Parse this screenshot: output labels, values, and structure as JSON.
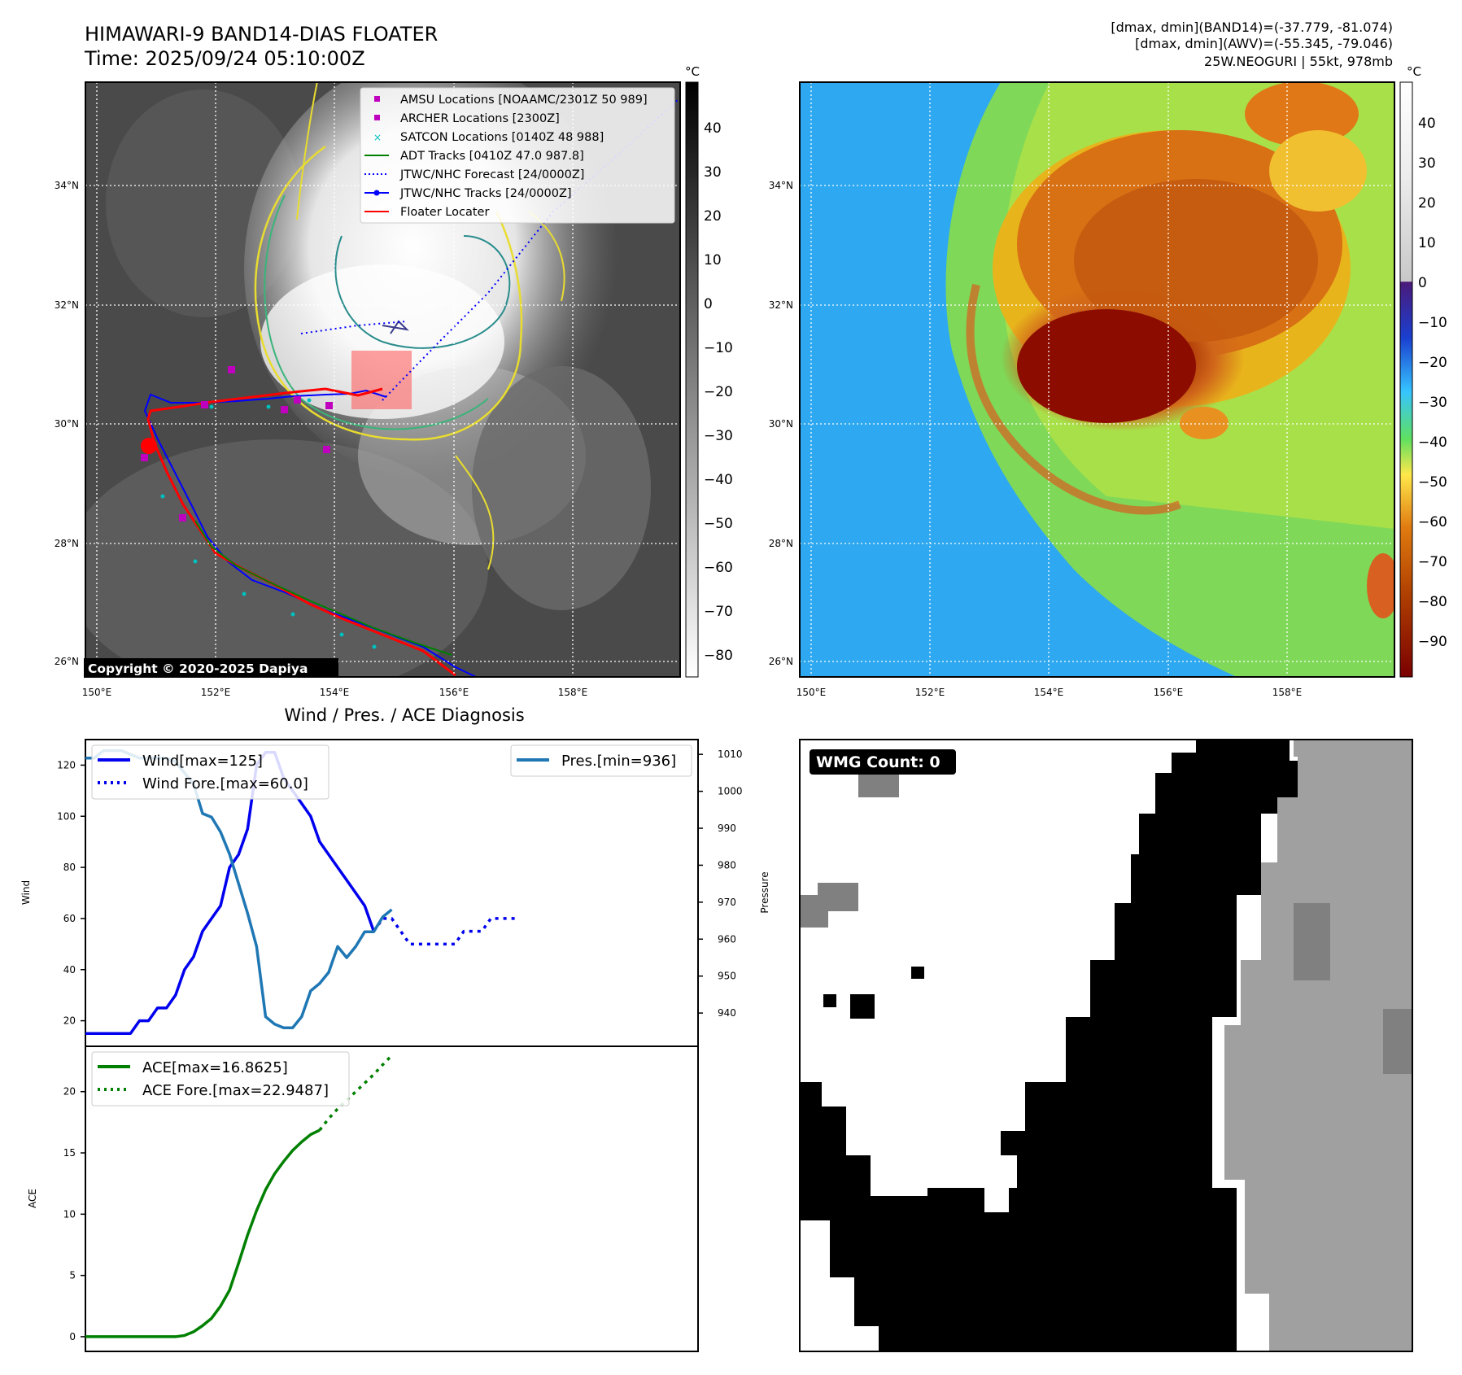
{
  "header": {
    "title_line1": "HIMAWARI-9 BAND14-DIAS FLOATER",
    "title_line2": "Time: 2025/09/24 05:10:00Z",
    "info_line1": "[dmax, dmin](BAND14)=(-37.779, -81.074)",
    "info_line2": "[dmax, dmin](AWV)=(-55.345, -79.046)",
    "info_line3": "25W.NEOGURI | 55kt, 978mb"
  },
  "map_left": {
    "lat_labels": [
      "34°N",
      "32°N",
      "30°N",
      "28°N",
      "26°N"
    ],
    "lon_labels": [
      "150°E",
      "152°E",
      "154°E",
      "156°E",
      "158°E"
    ],
    "colorbar_unit": "°C",
    "colorbar_ticks": [
      "40",
      "30",
      "20",
      "10",
      "0",
      "−10",
      "−20",
      "−30",
      "−40",
      "−50",
      "−60",
      "−70",
      "−80"
    ],
    "copyright": "Copyright © 2020-2025 Dapiya",
    "legend": [
      {
        "label": "AMSU Locations [NOAAMC/2301Z 50 989]",
        "color": "#bf00bf"
      },
      {
        "label": "ARCHER Locations [2300Z]",
        "color": "#bf00bf"
      },
      {
        "label": "SATCON Locations [0140Z 48 988]",
        "color": "#00bfbf"
      },
      {
        "label": "ADT Tracks [0410Z 47.0 987.8]",
        "color": "#008000"
      },
      {
        "label": "JTWC/NHC Forecast [24/0000Z]",
        "color": "#0000ff"
      },
      {
        "label": "JTWC/NHC Tracks [24/0000Z]",
        "color": "#0000ff"
      },
      {
        "label": "Floater Locater",
        "color": "#ff0000"
      }
    ]
  },
  "map_right": {
    "lat_labels": [
      "34°N",
      "32°N",
      "30°N",
      "28°N",
      "26°N"
    ],
    "lon_labels": [
      "150°E",
      "152°E",
      "154°E",
      "156°E",
      "158°E"
    ],
    "colorbar_unit": "°C",
    "colorbar_ticks": [
      "40",
      "30",
      "20",
      "10",
      "0",
      "−10",
      "−20",
      "−30",
      "−40",
      "−50",
      "−60",
      "−70",
      "−80",
      "−90"
    ]
  },
  "diag_title": "Wind / Pres. / ACE Diagnosis",
  "wmg_label": "WMG Count: 0",
  "chart_data": [
    {
      "type": "line",
      "title": "Wind / Pres. / ACE Diagnosis",
      "ylabel": "Wind",
      "ylim": [
        10,
        130
      ],
      "yticks": [
        20,
        40,
        60,
        80,
        100,
        120
      ],
      "y2label": "Pressure",
      "y2lim": [
        931,
        1014
      ],
      "y2ticks": [
        940,
        950,
        960,
        970,
        980,
        990,
        1000,
        1010
      ],
      "xlim": [
        0,
        68
      ],
      "series": [
        {
          "name": "Wind[max=125]",
          "axis": "left",
          "style": "solid",
          "color": "#0000ee",
          "values": [
            15,
            15,
            15,
            15,
            15,
            15,
            20,
            20,
            25,
            25,
            30,
            40,
            45,
            55,
            60,
            65,
            80,
            85,
            95,
            120,
            125,
            125,
            115,
            110,
            105,
            100,
            90,
            85,
            80,
            75,
            70,
            65,
            55
          ]
        },
        {
          "name": "Wind Fore.[max=60.0]",
          "axis": "left",
          "style": "dotted",
          "color": "#0000ee",
          "x_start": 32,
          "values": [
            55,
            60,
            60,
            55,
            50,
            50,
            50,
            50,
            50,
            50,
            55,
            55,
            55,
            60,
            60,
            60,
            60
          ]
        },
        {
          "name": "Pres.[min=936]",
          "axis": "right",
          "style": "solid",
          "color": "#1f77b4",
          "values": [
            1009,
            1009,
            1011,
            1011,
            1011,
            1010,
            1009,
            1009,
            1009,
            1009,
            1008,
            1005,
            1002,
            994,
            993,
            989,
            983,
            975,
            967,
            958,
            939,
            937,
            936,
            936,
            939,
            946,
            948,
            951,
            958,
            955,
            958,
            962,
            962,
            966,
            968
          ]
        }
      ]
    },
    {
      "type": "line",
      "ylabel": "ACE",
      "ylim": [
        -1.2,
        23.7
      ],
      "yticks": [
        0,
        5,
        10,
        15,
        20
      ],
      "xlim": [
        0,
        68
      ],
      "series": [
        {
          "name": "ACE[max=16.8625]",
          "style": "solid",
          "color": "#008000",
          "values": [
            0,
            0,
            0,
            0,
            0,
            0,
            0,
            0,
            0,
            0,
            0,
            0.1,
            0.4,
            0.9,
            1.5,
            2.5,
            3.8,
            6.0,
            8.3,
            10.3,
            12.0,
            13.3,
            14.3,
            15.2,
            15.9,
            16.5,
            16.86
          ]
        },
        {
          "name": "ACE Fore.[max=22.9487]",
          "style": "dotted",
          "color": "#008000",
          "x_start": 26,
          "values": [
            16.86,
            17.8,
            18.6,
            19.3,
            20.0,
            20.7,
            21.4,
            22.2,
            22.95
          ]
        }
      ]
    }
  ]
}
